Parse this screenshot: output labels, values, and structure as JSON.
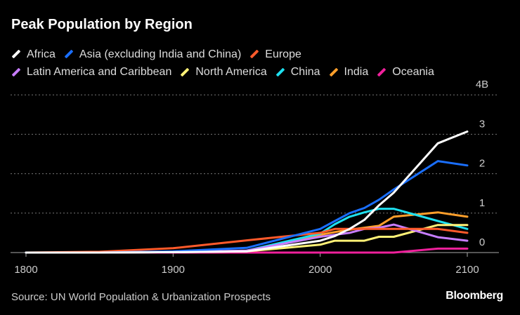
{
  "chart_data": {
    "type": "line",
    "title": "Peak Population by Region",
    "source": "Source: UN World Population & Urbanization Prospects",
    "brand": "Bloomberg",
    "x": [
      1800,
      1850,
      1900,
      1950,
      2000,
      2010,
      2020,
      2030,
      2040,
      2050,
      2080,
      2100
    ],
    "xlim": [
      1800,
      2100
    ],
    "ylim": [
      0,
      4
    ],
    "x_ticks": [
      "1800",
      "1900",
      "2000",
      "2100"
    ],
    "y_ticks": [
      "0",
      "1",
      "2",
      "3",
      "4B"
    ],
    "grid": true,
    "legend": "top",
    "series": [
      {
        "name": "Africa",
        "color": "#ffffff",
        "values": [
          0,
          0,
          0.01,
          0.03,
          0.3,
          0.42,
          0.6,
          0.83,
          1.2,
          1.52,
          2.77,
          3.07
        ]
      },
      {
        "name": "Asia (excluding India and China)",
        "color": "#1a6fff",
        "values": [
          0,
          0,
          0.03,
          0.12,
          0.6,
          0.8,
          1.0,
          1.13,
          1.34,
          1.6,
          2.32,
          2.21
        ]
      },
      {
        "name": "Europe",
        "color": "#ff5a2b",
        "values": [
          0,
          0.02,
          0.11,
          0.31,
          0.5,
          0.6,
          0.6,
          0.6,
          0.6,
          0.6,
          0.6,
          0.5
        ]
      },
      {
        "name": "Latin America and Caribbean",
        "color": "#c77dff",
        "values": [
          0,
          0,
          0.01,
          0.05,
          0.4,
          0.45,
          0.5,
          0.6,
          0.63,
          0.71,
          0.39,
          0.3
        ]
      },
      {
        "name": "North America",
        "color": "#fff176",
        "values": [
          0,
          0,
          0.01,
          0.03,
          0.2,
          0.3,
          0.3,
          0.3,
          0.4,
          0.4,
          0.7,
          0.7
        ]
      },
      {
        "name": "China",
        "color": "#1ee0f0",
        "values": [
          0,
          0,
          0.01,
          0.05,
          0.48,
          0.72,
          0.91,
          1.02,
          1.11,
          1.11,
          0.8,
          0.6
        ]
      },
      {
        "name": "India",
        "color": "#ff9f2b",
        "values": [
          0,
          0,
          0.01,
          0.04,
          0.45,
          0.52,
          0.58,
          0.63,
          0.68,
          0.91,
          1.02,
          0.91
        ]
      },
      {
        "name": "Oceania",
        "color": "#f0209c",
        "values": [
          0,
          0,
          0,
          0,
          0,
          0,
          0,
          0,
          0,
          0,
          0.1,
          0.1
        ]
      }
    ]
  }
}
